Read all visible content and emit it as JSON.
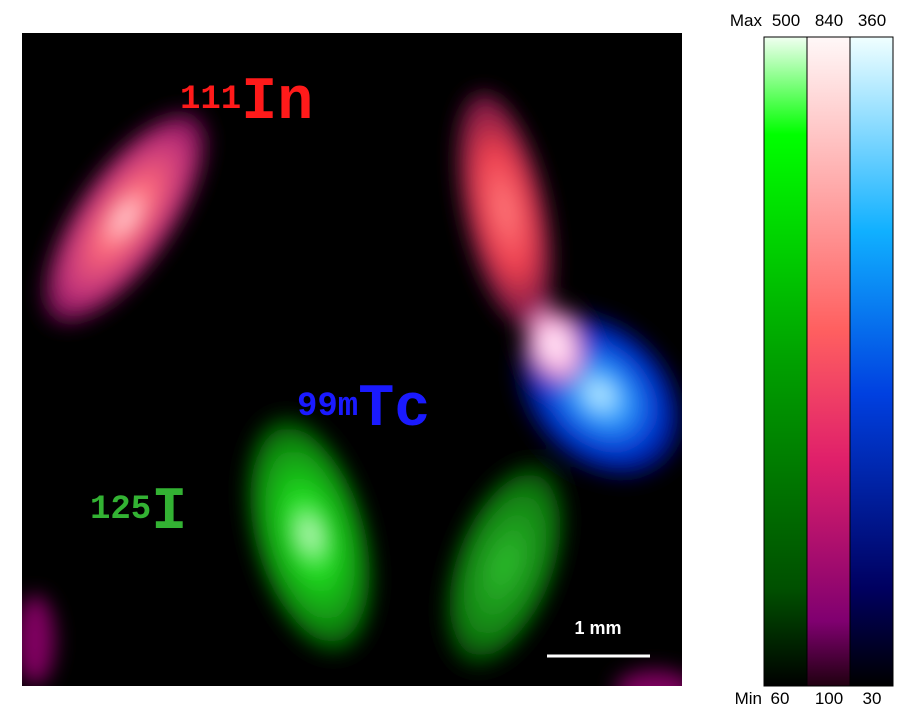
{
  "isotopes": [
    {
      "mass": "111",
      "element": "In"
    },
    {
      "mass": "99m",
      "element": "Tc"
    },
    {
      "mass": "125",
      "element": "I"
    }
  ],
  "scale_bar": "1 mm",
  "colorbar": {
    "max_label": "Max",
    "min_label": "Min",
    "bars": [
      {
        "max": 500,
        "min": 60
      },
      {
        "max": 840,
        "min": 100
      },
      {
        "max": 360,
        "min": 30
      }
    ]
  }
}
